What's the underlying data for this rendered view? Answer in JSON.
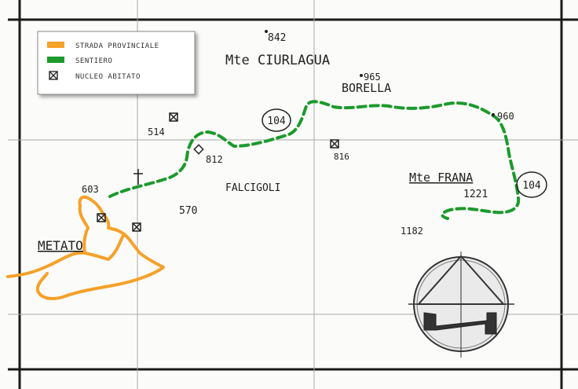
{
  "legend": {
    "items": [
      {
        "label": "STRADA PROVINCIALE",
        "color": "#f5a12a",
        "symbol": "line"
      },
      {
        "label": "SENTIERO",
        "color": "#1c9a2c",
        "symbol": "line"
      },
      {
        "label": "NUCLEO ABITATO",
        "color": "#333333",
        "symbol": "village"
      }
    ]
  },
  "places": {
    "ciurlagua": "Mte CIURLAGUA",
    "borella": "BORELLA",
    "falcigoli": "FALCIGOLI",
    "frana": "Mte FRANA",
    "metato": "METATO"
  },
  "elevations": {
    "e842": "842",
    "e965": "965",
    "e960": "960",
    "e1221": "1221",
    "e1182": "1182",
    "e812": "812",
    "e816": "816",
    "e514": "514",
    "e570": "570",
    "e603": "603"
  },
  "trail_numbers": {
    "trail_a": "104",
    "trail_b": "104"
  },
  "colors": {
    "road": "#f5a12a",
    "trail": "#1c9a2c",
    "grid": "#1a1a1a",
    "ink": "#222222"
  },
  "icons": [
    "compass-rose-icon",
    "church-cross-icon",
    "village-square-icon",
    "peak-dot-icon"
  ]
}
